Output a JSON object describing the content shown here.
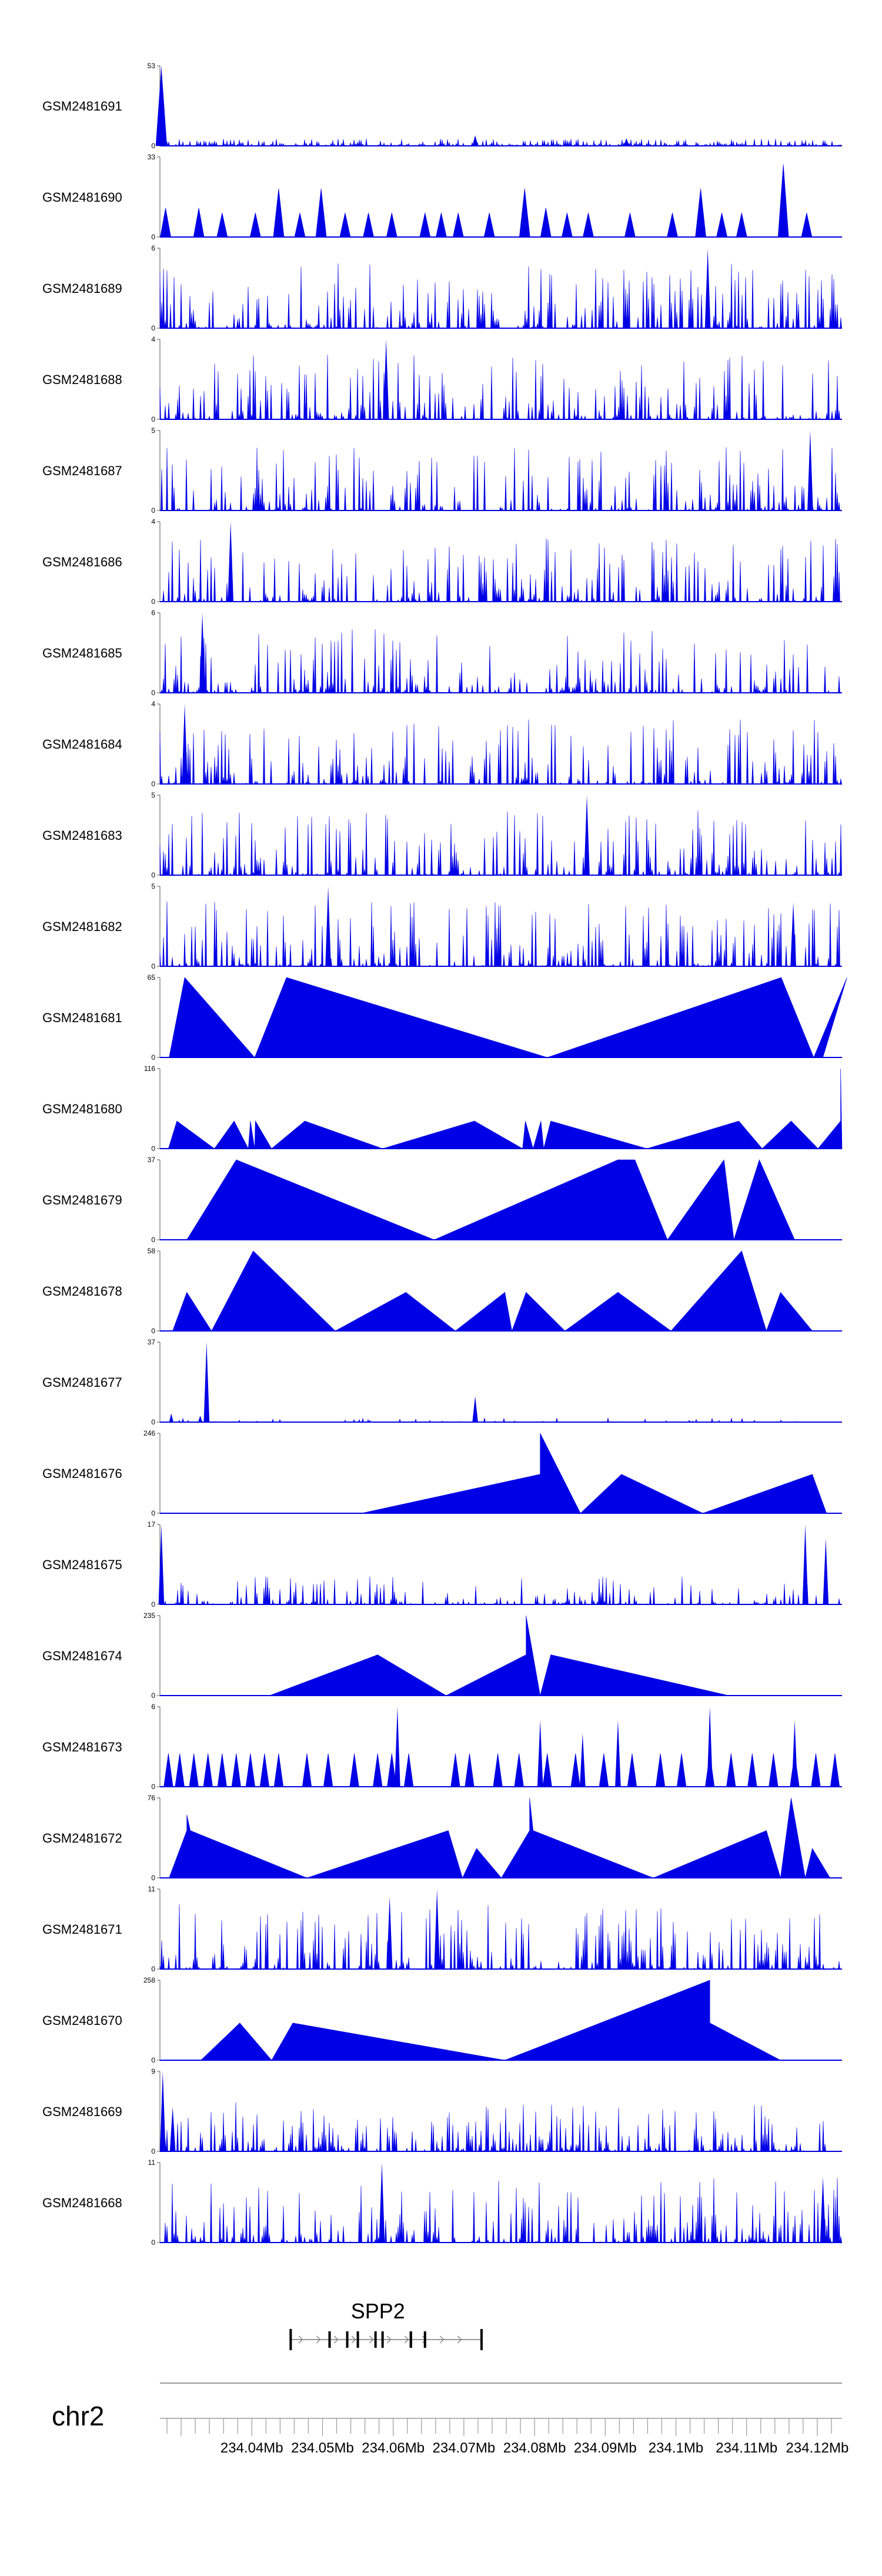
{
  "chart_data": {
    "type": "area",
    "color": "#0000e6",
    "chromosome": "chr2",
    "xlim_mb": [
      234.027,
      234.1235
    ],
    "gene": {
      "name": "SPP2",
      "start_mb": 234.0455,
      "end_mb": 234.0725,
      "strand": "+",
      "exons_mb": [
        234.0455,
        234.051,
        234.0535,
        234.055,
        234.0575,
        234.0585,
        234.0625,
        234.0625,
        234.0645,
        234.0725
      ]
    },
    "axis": {
      "tick_labels": [
        "234.04Mb",
        "234.05Mb",
        "234.06Mb",
        "234.07Mb",
        "234.08Mb",
        "234.09Mb",
        "234.1Mb",
        "234.11Mb",
        "234.12Mb"
      ],
      "tick_values": [
        234.04,
        234.05,
        234.06,
        234.07,
        234.08,
        234.09,
        234.1,
        234.11,
        234.12
      ]
    },
    "tracks": [
      {
        "name": "GSM2481691",
        "ymax": 53,
        "kind": "noise",
        "seed": 1,
        "density": 0.9,
        "scale": 0.05,
        "spikes": [
          [
            234.0272,
            53,
            0.0008
          ],
          [
            234.0716,
            7,
            0.0004
          ],
          [
            234.093,
            5,
            0.0004
          ]
        ]
      },
      {
        "name": "GSM2481690",
        "ymax": 33,
        "kind": "peaks",
        "peaks": [
          [
            234.0278,
            12,
            0.0015
          ],
          [
            234.0325,
            12,
            0.0015
          ],
          [
            234.0358,
            10,
            0.0015
          ],
          [
            234.0405,
            10,
            0.0015
          ],
          [
            234.0438,
            20,
            0.0015
          ],
          [
            234.0468,
            10,
            0.0015
          ],
          [
            234.0498,
            20,
            0.0015
          ],
          [
            234.0532,
            10,
            0.0015
          ],
          [
            234.0565,
            10,
            0.0015
          ],
          [
            234.0598,
            10,
            0.0015
          ],
          [
            234.0645,
            10,
            0.0015
          ],
          [
            234.0668,
            10,
            0.0015
          ],
          [
            234.0692,
            10,
            0.0015
          ],
          [
            234.0736,
            10,
            0.0015
          ],
          [
            234.0786,
            20,
            0.0015
          ],
          [
            234.0816,
            12,
            0.0015
          ],
          [
            234.0846,
            10,
            0.0015
          ],
          [
            234.0876,
            10,
            0.0015
          ],
          [
            234.0935,
            10,
            0.0015
          ],
          [
            234.0995,
            10,
            0.0015
          ],
          [
            234.1035,
            20,
            0.0015
          ],
          [
            234.1065,
            10,
            0.0015
          ],
          [
            234.1093,
            10,
            0.0015
          ],
          [
            234.1152,
            30,
            0.0015
          ],
          [
            234.1185,
            10,
            0.0015
          ]
        ]
      },
      {
        "name": "GSM2481689",
        "ymax": 6,
        "kind": "noise",
        "seed": 3,
        "density": 0.55,
        "scale": 0.45,
        "spikes": [
          [
            234.1045,
            6,
            0.0004
          ]
        ]
      },
      {
        "name": "GSM2481688",
        "ymax": 4,
        "kind": "noise",
        "seed": 4,
        "density": 0.55,
        "scale": 0.45,
        "spikes": [
          [
            234.059,
            4,
            0.0004
          ]
        ]
      },
      {
        "name": "GSM2481687",
        "ymax": 5,
        "kind": "noise",
        "seed": 5,
        "density": 0.55,
        "scale": 0.45,
        "spikes": [
          [
            234.119,
            5,
            0.0004
          ]
        ]
      },
      {
        "name": "GSM2481686",
        "ymax": 4,
        "kind": "noise",
        "seed": 6,
        "density": 0.55,
        "scale": 0.45,
        "spikes": [
          [
            234.037,
            4,
            0.0004
          ]
        ]
      },
      {
        "name": "GSM2481685",
        "ymax": 6,
        "kind": "noise",
        "seed": 7,
        "density": 0.55,
        "scale": 0.45,
        "spikes": [
          [
            234.033,
            6,
            0.0004
          ]
        ]
      },
      {
        "name": "GSM2481684",
        "ymax": 4,
        "kind": "noise",
        "seed": 8,
        "density": 0.55,
        "scale": 0.45,
        "spikes": [
          [
            234.0305,
            4,
            0.0004
          ]
        ]
      },
      {
        "name": "GSM2481683",
        "ymax": 5,
        "kind": "noise",
        "seed": 9,
        "density": 0.55,
        "scale": 0.45,
        "spikes": [
          [
            234.0874,
            5,
            0.0004
          ]
        ]
      },
      {
        "name": "GSM2481682",
        "ymax": 5,
        "kind": "noise",
        "seed": 10,
        "density": 0.55,
        "scale": 0.45,
        "spikes": [
          [
            234.0508,
            5,
            0.0004
          ],
          [
            234.1166,
            4,
            0.0004
          ]
        ]
      },
      {
        "name": "GSM2481681",
        "ymax": 65,
        "kind": "segments",
        "points": [
          [
            234.0283,
            0
          ],
          [
            234.0305,
            65
          ],
          [
            234.0404,
            0
          ],
          [
            234.0449,
            65
          ],
          [
            234.0818,
            0
          ],
          [
            234.1149,
            65
          ],
          [
            234.1195,
            0
          ],
          [
            234.1242,
            65
          ],
          [
            234.1208,
            0
          ]
        ]
      },
      {
        "name": "GSM2481680",
        "ymax": 116,
        "kind": "segments",
        "points": [
          [
            234.0282,
            0
          ],
          [
            234.0294,
            40
          ],
          [
            234.0347,
            0
          ],
          [
            234.0375,
            40
          ],
          [
            234.0395,
            0
          ],
          [
            234.0398,
            40
          ],
          [
            234.0404,
            0
          ],
          [
            234.0405,
            40
          ],
          [
            234.0428,
            0
          ],
          [
            234.0475,
            40
          ],
          [
            234.0585,
            0
          ],
          [
            234.0715,
            40
          ],
          [
            234.0783,
            0
          ],
          [
            234.0787,
            40
          ],
          [
            234.0798,
            0
          ],
          [
            234.0809,
            40
          ],
          [
            234.0813,
            0
          ],
          [
            234.0823,
            40
          ],
          [
            234.0959,
            0
          ],
          [
            234.1089,
            40
          ],
          [
            234.1122,
            0
          ],
          [
            234.1163,
            40
          ],
          [
            234.1201,
            0
          ],
          [
            234.1233,
            40
          ],
          [
            234.1233,
            116
          ],
          [
            234.1235,
            0
          ]
        ]
      },
      {
        "name": "GSM2481679",
        "ymax": 37,
        "kind": "segments",
        "points": [
          [
            234.0308,
            0
          ],
          [
            234.0378,
            37
          ],
          [
            234.0658,
            0
          ],
          [
            234.0918,
            37
          ],
          [
            234.0912,
            0
          ],
          [
            234.0918,
            37
          ],
          [
            234.0942,
            37
          ],
          [
            234.0988,
            0
          ],
          [
            234.1068,
            37
          ],
          [
            234.1082,
            0
          ],
          [
            234.1118,
            37
          ],
          [
            234.1168,
            0
          ]
        ]
      },
      {
        "name": "GSM2481678",
        "ymax": 58,
        "kind": "segments",
        "points": [
          [
            234.0288,
            0
          ],
          [
            234.0308,
            28
          ],
          [
            234.0343,
            0
          ],
          [
            234.0402,
            58
          ],
          [
            234.0518,
            0
          ],
          [
            234.0618,
            28
          ],
          [
            234.0688,
            0
          ],
          [
            234.0758,
            28
          ],
          [
            234.0768,
            0
          ],
          [
            234.0788,
            28
          ],
          [
            234.0843,
            0
          ],
          [
            234.0918,
            28
          ],
          [
            234.0993,
            0
          ],
          [
            234.1093,
            58
          ],
          [
            234.1128,
            0
          ],
          [
            234.1148,
            28
          ],
          [
            234.1193,
            0
          ]
        ]
      },
      {
        "name": "GSM2481677",
        "ymax": 37,
        "kind": "noise",
        "seed": 15,
        "density": 0.2,
        "scale": 0.03,
        "spikes": [
          [
            234.0336,
            37,
            0.0004
          ],
          [
            234.0327,
            3,
            0.0003
          ],
          [
            234.0716,
            12,
            0.0004
          ],
          [
            234.0286,
            4,
            0.0003
          ]
        ]
      },
      {
        "name": "GSM2481676",
        "ymax": 246,
        "kind": "segments",
        "points": [
          [
            234.0555,
            0
          ],
          [
            234.0808,
            120
          ],
          [
            234.0808,
            246
          ],
          [
            234.0865,
            0
          ],
          [
            234.0923,
            120
          ],
          [
            234.1038,
            0
          ],
          [
            234.1193,
            120
          ],
          [
            234.1213,
            0
          ]
        ]
      },
      {
        "name": "GSM2481675",
        "ymax": 17,
        "kind": "noise",
        "seed": 17,
        "density": 0.5,
        "scale": 0.2,
        "spikes": [
          [
            234.0272,
            17,
            0.0004
          ],
          [
            234.1183,
            17,
            0.0004
          ],
          [
            234.1212,
            14,
            0.0004
          ]
        ]
      },
      {
        "name": "GSM2481674",
        "ymax": 235,
        "kind": "segments",
        "points": [
          [
            234.0425,
            0
          ],
          [
            234.0578,
            120
          ],
          [
            234.0675,
            0
          ],
          [
            234.0788,
            120
          ],
          [
            234.0788,
            235
          ],
          [
            234.0808,
            0
          ],
          [
            234.0823,
            120
          ],
          [
            234.1075,
            0
          ]
        ]
      },
      {
        "name": "GSM2481673",
        "ymax": 6,
        "kind": "peaks",
        "peaks": [
          [
            234.0282,
            2.5,
            0.0013
          ],
          [
            234.0298,
            2.5,
            0.0013
          ],
          [
            234.0318,
            2.5,
            0.0013
          ],
          [
            234.0338,
            2.5,
            0.0013
          ],
          [
            234.0358,
            2.5,
            0.0013
          ],
          [
            234.0378,
            2.5,
            0.0013
          ],
          [
            234.0398,
            2.5,
            0.0013
          ],
          [
            234.0418,
            2.5,
            0.0013
          ],
          [
            234.0438,
            2.5,
            0.0013
          ],
          [
            234.0478,
            2.5,
            0.0013
          ],
          [
            234.0508,
            2.5,
            0.0013
          ],
          [
            234.0545,
            2.5,
            0.0013
          ],
          [
            234.0578,
            2.5,
            0.0013
          ],
          [
            234.0598,
            2.5,
            0.0013
          ],
          [
            234.0622,
            2.5,
            0.0013
          ],
          [
            234.0688,
            2.5,
            0.0013
          ],
          [
            234.0708,
            2.5,
            0.0013
          ],
          [
            234.0748,
            2.5,
            0.0013
          ],
          [
            234.0778,
            2.5,
            0.0013
          ],
          [
            234.0818,
            2.5,
            0.0013
          ],
          [
            234.0858,
            2.5,
            0.0013
          ],
          [
            234.0898,
            2.5,
            0.0013
          ],
          [
            234.0938,
            2.5,
            0.0013
          ],
          [
            234.0978,
            2.5,
            0.0013
          ],
          [
            234.1008,
            2.5,
            0.0013
          ],
          [
            234.1048,
            2.5,
            0.0013
          ],
          [
            234.1078,
            2.5,
            0.0013
          ],
          [
            234.1108,
            2.5,
            0.0013
          ],
          [
            234.1138,
            2.5,
            0.0013
          ],
          [
            234.1168,
            2.5,
            0.0013
          ],
          [
            234.1198,
            2.5,
            0.0013
          ],
          [
            234.1225,
            2.5,
            0.0013
          ]
        ],
        "spikes": [
          [
            234.0606,
            6,
            0.0004
          ],
          [
            234.0808,
            5,
            0.0004
          ],
          [
            234.0868,
            4,
            0.0004
          ],
          [
            234.0918,
            5,
            0.0004
          ],
          [
            234.1048,
            6,
            0.0004
          ],
          [
            234.1168,
            5,
            0.0004
          ]
        ]
      },
      {
        "name": "GSM2481672",
        "ymax": 76,
        "kind": "segments",
        "points": [
          [
            234.0283,
            0
          ],
          [
            234.0308,
            45
          ],
          [
            234.0308,
            60
          ],
          [
            234.0313,
            45
          ],
          [
            234.0478,
            0
          ],
          [
            234.0678,
            45
          ],
          [
            234.0698,
            0
          ],
          [
            234.0718,
            28
          ],
          [
            234.0753,
            0
          ],
          [
            234.0793,
            45
          ],
          [
            234.0793,
            76
          ],
          [
            234.0798,
            45
          ],
          [
            234.0968,
            0
          ],
          [
            234.1128,
            45
          ],
          [
            234.1148,
            0
          ],
          [
            234.1163,
            76
          ],
          [
            234.1183,
            0
          ],
          [
            234.1193,
            28
          ],
          [
            234.1218,
            0
          ]
        ]
      },
      {
        "name": "GSM2481671",
        "ymax": 11,
        "kind": "noise",
        "seed": 21,
        "density": 0.55,
        "scale": 0.45,
        "spikes": [
          [
            234.0662,
            11,
            0.0004
          ],
          [
            234.0595,
            10,
            0.0004
          ]
        ]
      },
      {
        "name": "GSM2481670",
        "ymax": 258,
        "kind": "segments",
        "points": [
          [
            234.0328,
            0
          ],
          [
            234.0383,
            120
          ],
          [
            234.0428,
            0
          ],
          [
            234.0458,
            120
          ],
          [
            234.0758,
            0
          ],
          [
            234.1048,
            258
          ],
          [
            234.1048,
            120
          ],
          [
            234.1148,
            0
          ]
        ]
      },
      {
        "name": "GSM2481669",
        "ymax": 9,
        "kind": "noise",
        "seed": 23,
        "density": 0.6,
        "scale": 0.35,
        "spikes": [
          [
            234.0274,
            9,
            0.0004
          ],
          [
            234.0288,
            5,
            0.0004
          ]
        ]
      },
      {
        "name": "GSM2481668",
        "ymax": 11,
        "kind": "noise",
        "seed": 24,
        "density": 0.6,
        "scale": 0.45,
        "spikes": [
          [
            234.0584,
            11,
            0.0004
          ],
          [
            234.1208,
            9,
            0.0004
          ]
        ]
      }
    ]
  }
}
